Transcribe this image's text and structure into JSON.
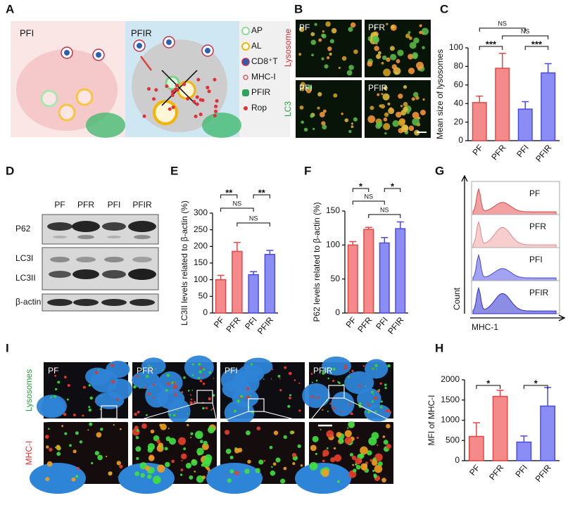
{
  "panels": {
    "letters": [
      "A",
      "B",
      "C",
      "D",
      "E",
      "F",
      "G",
      "H",
      "I"
    ]
  },
  "schematic": {
    "left_title": "PFI",
    "right_title": "PFIR",
    "legend": [
      "AP",
      "AL",
      "CD8⁺T",
      "MHC-I",
      "PFIR",
      "Rop"
    ]
  },
  "microscopy_b": {
    "row_labels": [
      "Lysosome",
      "LC3"
    ],
    "image_labels": [
      "PF",
      "PFR",
      "PFI",
      "PFIR"
    ]
  },
  "western_blot": {
    "lanes": [
      "PF",
      "PFR",
      "PFI",
      "PFIR"
    ],
    "rows": [
      "P62",
      "LC3I",
      "LC3II",
      "β-actin"
    ]
  },
  "flow": {
    "panel_labels": [
      "PF",
      "PFR",
      "PFI",
      "PFIR"
    ],
    "y_label": "Count",
    "x_label": "MHC-1"
  },
  "microscopy_i": {
    "row_labels": [
      "Lysosomes",
      "MHC-I"
    ],
    "image_labels": [
      "PF",
      "PFR",
      "PFI",
      "PFIR"
    ]
  },
  "chart_data": [
    {
      "type": "bar",
      "y_label": "Mean size of lysosomes",
      "categories": [
        "PF",
        "PFR",
        "PFI",
        "PFIR"
      ],
      "values": [
        41,
        78,
        34,
        73
      ],
      "errors": [
        7,
        16,
        8,
        10
      ],
      "colors": [
        "#f58a8a",
        "#f58a8a",
        "#8c8cf5",
        "#8c8cf5"
      ],
      "ylim": [
        0,
        100
      ],
      "yticks": [
        0,
        20,
        40,
        60,
        80,
        100
      ],
      "significance": [
        {
          "label": "NS",
          "groups": [
            "PF",
            "PFI"
          ]
        },
        {
          "label": "***",
          "groups": [
            "PF",
            "PFR"
          ]
        },
        {
          "label": "NS",
          "groups": [
            "PFR",
            "PFIR"
          ]
        },
        {
          "label": "***",
          "groups": [
            "PFI",
            "PFIR"
          ]
        }
      ]
    },
    {
      "type": "bar",
      "y_label": "LC3II levels related to β-actin (%)",
      "categories": [
        "PF",
        "PFR",
        "PFI",
        "PFIR"
      ],
      "values": [
        100,
        185,
        115,
        176
      ],
      "errors": [
        13,
        27,
        9,
        12
      ],
      "colors": [
        "#f58a8a",
        "#f58a8a",
        "#8c8cf5",
        "#8c8cf5"
      ],
      "ylim": [
        0,
        300
      ],
      "yticks": [
        0,
        50,
        100,
        150,
        200,
        250,
        300
      ],
      "significance": [
        {
          "label": "**",
          "groups": [
            "PF",
            "PFR"
          ]
        },
        {
          "label": "**",
          "groups": [
            "PFI",
            "PFIR"
          ]
        },
        {
          "label": "NS",
          "groups": [
            "PF",
            "PFI"
          ]
        },
        {
          "label": "NS",
          "groups": [
            "PFR",
            "PFIR"
          ]
        }
      ]
    },
    {
      "type": "bar",
      "y_label": "P62 levels related to β-actin (%)",
      "categories": [
        "PF",
        "PFR",
        "PFI",
        "PFIR"
      ],
      "values": [
        100,
        123,
        103,
        124
      ],
      "errors": [
        5,
        3,
        8,
        10
      ],
      "colors": [
        "#f58a8a",
        "#f58a8a",
        "#8c8cf5",
        "#8c8cf5"
      ],
      "ylim": [
        0,
        150
      ],
      "yticks": [
        0,
        50,
        100,
        150
      ],
      "significance": [
        {
          "label": "*",
          "groups": [
            "PF",
            "PFR"
          ]
        },
        {
          "label": "*",
          "groups": [
            "PFI",
            "PFIR"
          ]
        },
        {
          "label": "NS",
          "groups": [
            "PF",
            "PFI"
          ]
        },
        {
          "label": "NS",
          "groups": [
            "PFR",
            "PFIR"
          ]
        }
      ]
    },
    {
      "type": "bar",
      "y_label": "MFI of MHC-I",
      "categories": [
        "PF",
        "PFR",
        "PFI",
        "PFIR"
      ],
      "values": [
        600,
        1590,
        460,
        1350
      ],
      "errors": [
        340,
        150,
        150,
        460
      ],
      "colors": [
        "#f58a8a",
        "#f58a8a",
        "#8c8cf5",
        "#8c8cf5"
      ],
      "ylim": [
        0,
        2000
      ],
      "yticks": [
        0,
        500,
        1000,
        1500,
        2000
      ],
      "significance": [
        {
          "label": "*",
          "groups": [
            "PF",
            "PFR"
          ]
        },
        {
          "label": "*",
          "groups": [
            "PFI",
            "PFIR"
          ]
        }
      ]
    }
  ]
}
